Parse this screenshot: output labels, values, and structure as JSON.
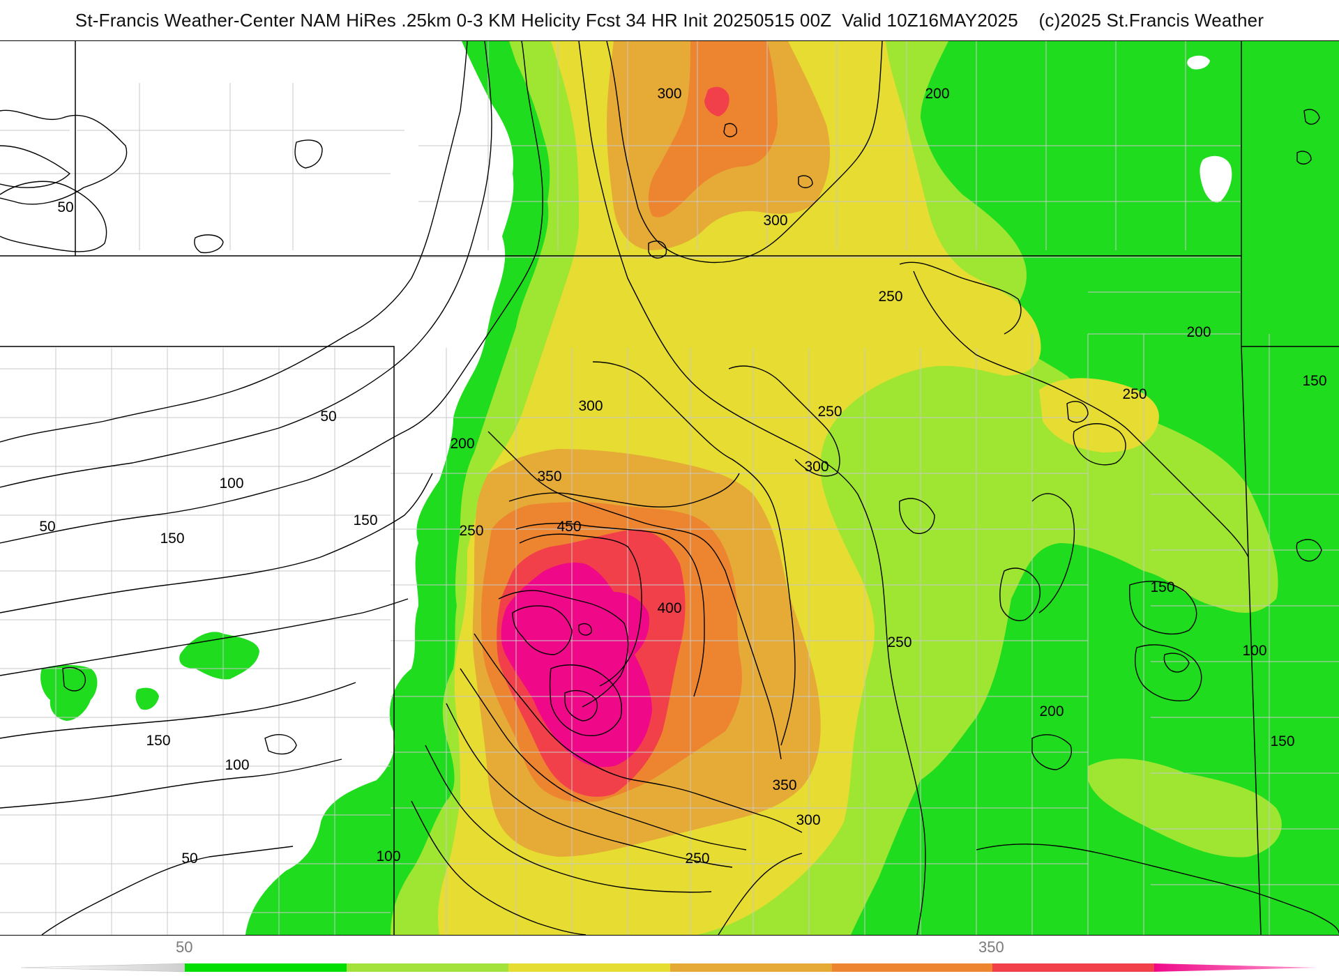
{
  "header": {
    "title": "St-Francis Weather-Center NAM HiRes .25km 0-3 KM Helicity Fcst 34 HR Init 20250515 00Z  Valid 10Z16MAY2025    (c)2025 St.Francis Weather"
  },
  "colors": {
    "below_50": "#ffffff",
    "band_50_100": "#00dd00",
    "band_100_150": "#22e822",
    "band_150_200": "#22dd22",
    "band_200_250": "#9be830",
    "band_250_300": "#e6dd32",
    "band_300_350": "#e5a936",
    "band_350_400": "#ed8530",
    "band_400_450": "#f2404a",
    "band_450_plus": "#ee0888",
    "contour_line": "#000000",
    "state_border": "#000000",
    "county_border": "#c9c9c9"
  },
  "colorbar": {
    "tick_labels": [
      "50",
      "350"
    ],
    "segment_colors": [
      "#00dd00",
      "#a2e23a",
      "#e6dd32",
      "#e5a936",
      "#ed8530",
      "#f2404a",
      "#ee0888"
    ]
  },
  "contour_labels": [
    {
      "id": "c-300-a",
      "text": "300"
    },
    {
      "id": "c-200-a",
      "text": "200"
    },
    {
      "id": "c-300-b",
      "text": "300"
    },
    {
      "id": "c-50-a",
      "text": "50"
    },
    {
      "id": "c-250-a",
      "text": "250"
    },
    {
      "id": "c-200-b",
      "text": "200"
    },
    {
      "id": "c-150-a",
      "text": "150"
    },
    {
      "id": "c-250-b",
      "text": "250"
    },
    {
      "id": "c-300-c",
      "text": "300"
    },
    {
      "id": "c-250-c",
      "text": "250"
    },
    {
      "id": "c-50-b",
      "text": "50"
    },
    {
      "id": "c-200-c",
      "text": "200"
    },
    {
      "id": "c-300-d",
      "text": "300"
    },
    {
      "id": "c-350-a",
      "text": "350"
    },
    {
      "id": "c-100-a",
      "text": "100"
    },
    {
      "id": "c-250-d",
      "text": "250"
    },
    {
      "id": "c-450-a",
      "text": "450"
    },
    {
      "id": "c-150-b",
      "text": "150"
    },
    {
      "id": "c-50-c",
      "text": "50"
    },
    {
      "id": "c-150-c",
      "text": "150"
    },
    {
      "id": "c-400-a",
      "text": "400"
    },
    {
      "id": "c-150-d",
      "text": "150"
    },
    {
      "id": "c-250-e",
      "text": "250"
    },
    {
      "id": "c-100-b",
      "text": "100"
    },
    {
      "id": "c-200-d",
      "text": "200"
    },
    {
      "id": "c-150-e",
      "text": "150"
    },
    {
      "id": "c-100-c",
      "text": "100"
    },
    {
      "id": "c-350-b",
      "text": "350"
    },
    {
      "id": "c-300-e",
      "text": "300"
    },
    {
      "id": "c-150-f",
      "text": "150"
    },
    {
      "id": "c-50-d",
      "text": "50"
    },
    {
      "id": "c-100-d",
      "text": "100"
    },
    {
      "id": "c-250-f",
      "text": "250"
    }
  ]
}
